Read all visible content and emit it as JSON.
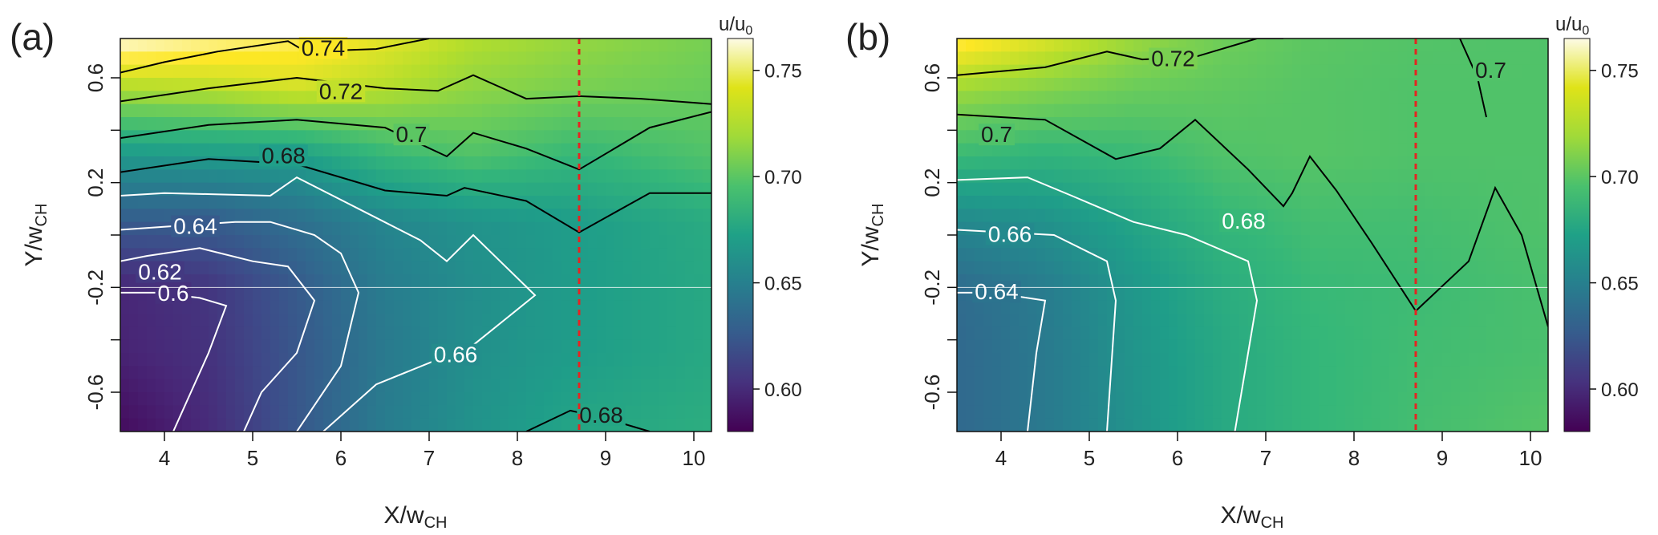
{
  "chart_data": [
    {
      "type": "heatmap",
      "panel_label": "(a)",
      "xlabel": "X/w",
      "xlabel_sub": "CH",
      "ylabel": "Y/w",
      "ylabel_sub": "CH",
      "xlim": [
        3.5,
        10.2
      ],
      "ylim": [
        -0.75,
        0.75
      ],
      "x_ticks": [
        "4",
        "5",
        "6",
        "7",
        "8",
        "9",
        "10"
      ],
      "x_tick_values": [
        4,
        5,
        6,
        7,
        8,
        9,
        10
      ],
      "y_ticks": [
        "-0.6",
        "-0.2",
        "0.2",
        "0.6"
      ],
      "y_tick_values": [
        -0.6,
        -0.2,
        0.2,
        0.6
      ],
      "y_minor_tick_values": [
        -0.4,
        0,
        0.4
      ],
      "vline_x": 8.7,
      "hline_y": -0.2,
      "colorbar": {
        "title_main": "u/u",
        "title_sub": "0",
        "range": [
          0.58,
          0.765
        ],
        "ticks": [
          "0.60",
          "0.65",
          "0.70",
          "0.75"
        ],
        "tick_values": [
          0.6,
          0.65,
          0.7,
          0.75
        ]
      },
      "field": {
        "x": [
          3.5,
          4.5,
          5.5,
          6.5,
          7.5,
          8.7,
          10.2
        ],
        "y": [
          -0.75,
          -0.45,
          -0.2,
          0.05,
          0.3,
          0.55,
          0.75
        ],
        "z": [
          [
            0.585,
            0.6,
            0.625,
            0.65,
            0.665,
            0.678,
            0.684
          ],
          [
            0.596,
            0.604,
            0.625,
            0.648,
            0.663,
            0.672,
            0.68
          ],
          [
            0.598,
            0.606,
            0.627,
            0.65,
            0.662,
            0.672,
            0.68
          ],
          [
            0.628,
            0.628,
            0.64,
            0.656,
            0.665,
            0.672,
            0.682
          ],
          [
            0.668,
            0.67,
            0.672,
            0.69,
            0.7,
            0.69,
            0.7
          ],
          [
            0.725,
            0.728,
            0.735,
            0.728,
            0.718,
            0.712,
            0.708
          ],
          [
            0.765,
            0.758,
            0.752,
            0.74,
            0.728,
            0.72,
            0.712
          ]
        ]
      },
      "contours": [
        {
          "level": "0.74",
          "color": "black",
          "x": [
            3.5,
            4.0,
            4.6,
            5.4,
            5.6,
            6.4,
            7.0
          ],
          "y": [
            0.62,
            0.66,
            0.7,
            0.74,
            0.7,
            0.71,
            0.75
          ],
          "label_x": 5.8,
          "label_y": 0.715
        },
        {
          "level": "0.72",
          "color": "black",
          "x": [
            3.5,
            4.5,
            5.5,
            6.5,
            7.1,
            7.5,
            8.1,
            8.7,
            9.4,
            10.2
          ],
          "y": [
            0.51,
            0.56,
            0.6,
            0.56,
            0.55,
            0.61,
            0.52,
            0.53,
            0.52,
            0.5
          ],
          "label_x": 6.0,
          "label_y": 0.55
        },
        {
          "level": "0.7",
          "color": "black",
          "x": [
            3.5,
            4.5,
            5.5,
            6.5,
            7.2,
            7.5,
            8.1,
            8.7,
            9.5,
            10.2
          ],
          "y": [
            0.37,
            0.42,
            0.44,
            0.41,
            0.3,
            0.39,
            0.33,
            0.25,
            0.41,
            0.47
          ],
          "label_x": 6.8,
          "label_y": 0.385
        },
        {
          "level": "0.68",
          "color": "black",
          "x": [
            3.5,
            4.5,
            5.5,
            6.5,
            7.2,
            7.4,
            8.1,
            8.7,
            9.5,
            10.2
          ],
          "y": [
            0.24,
            0.29,
            0.27,
            0.17,
            0.15,
            0.18,
            0.13,
            0.01,
            0.16,
            0.16
          ],
          "label_x": 5.35,
          "label_y": 0.305
        },
        {
          "level": "0.66",
          "color": "white",
          "x": [
            3.5,
            4.0,
            5.2,
            5.5,
            6.2,
            6.9,
            7.2,
            7.5,
            8.2,
            7.5,
            6.4,
            5.8
          ],
          "y": [
            0.15,
            0.16,
            0.15,
            0.22,
            0.1,
            -0.02,
            -0.1,
            0.0,
            -0.23,
            -0.42,
            -0.57,
            -0.75
          ],
          "label_x": 7.3,
          "label_y": -0.455
        },
        {
          "level": "0.64",
          "color": "white",
          "x": [
            3.5,
            4.8,
            5.2,
            5.7,
            6.0,
            6.2,
            6.0,
            5.5
          ],
          "y": [
            0.02,
            0.05,
            0.05,
            0.0,
            -0.07,
            -0.22,
            -0.5,
            -0.75
          ],
          "label_x": 4.35,
          "label_y": 0.035
        },
        {
          "level": "0.62",
          "color": "white",
          "x": [
            3.5,
            3.8,
            4.4,
            5.0,
            5.4,
            5.7,
            5.5,
            5.1,
            4.9
          ],
          "y": [
            -0.1,
            -0.08,
            -0.05,
            -0.1,
            -0.12,
            -0.25,
            -0.45,
            -0.6,
            -0.75
          ],
          "label_x": 3.95,
          "label_y": -0.14
        },
        {
          "level": "0.6",
          "color": "white",
          "x": [
            3.5,
            3.9,
            4.4,
            4.7,
            4.5,
            4.3,
            4.1
          ],
          "y": [
            -0.22,
            -0.22,
            -0.24,
            -0.27,
            -0.45,
            -0.6,
            -0.75
          ],
          "label_x": 4.1,
          "label_y": -0.22
        },
        {
          "level": "0.68",
          "color": "black",
          "x": [
            8.1,
            8.6,
            9.0,
            9.5
          ],
          "y": [
            -0.75,
            -0.67,
            -0.7,
            -0.75
          ],
          "label_x": 8.95,
          "label_y": -0.685
        }
      ]
    },
    {
      "type": "heatmap",
      "panel_label": "(b)",
      "xlabel": "X/w",
      "xlabel_sub": "CH",
      "ylabel": "Y/w",
      "ylabel_sub": "CH",
      "xlim": [
        3.5,
        10.2
      ],
      "ylim": [
        -0.75,
        0.75
      ],
      "x_ticks": [
        "4",
        "5",
        "6",
        "7",
        "8",
        "9",
        "10"
      ],
      "x_tick_values": [
        4,
        5,
        6,
        7,
        8,
        9,
        10
      ],
      "y_ticks": [
        "-0.6",
        "-0.2",
        "0.2",
        "0.6"
      ],
      "y_tick_values": [
        -0.6,
        -0.2,
        0.2,
        0.6
      ],
      "y_minor_tick_values": [
        -0.4,
        0,
        0.4
      ],
      "vline_x": 8.7,
      "hline_y": -0.2,
      "colorbar": {
        "title_main": "u/u",
        "title_sub": "0",
        "range": [
          0.58,
          0.765
        ],
        "ticks": [
          "0.60",
          "0.65",
          "0.70",
          "0.75"
        ],
        "tick_values": [
          0.6,
          0.65,
          0.7,
          0.75
        ]
      },
      "field": {
        "x": [
          3.5,
          4.5,
          5.5,
          6.5,
          7.5,
          8.7,
          10.2
        ],
        "y": [
          -0.75,
          -0.45,
          -0.2,
          0.05,
          0.3,
          0.55,
          0.75
        ],
        "z": [
          [
            0.636,
            0.648,
            0.665,
            0.68,
            0.69,
            0.696,
            0.702
          ],
          [
            0.636,
            0.648,
            0.666,
            0.68,
            0.69,
            0.695,
            0.698
          ],
          [
            0.638,
            0.65,
            0.668,
            0.683,
            0.692,
            0.694,
            0.698
          ],
          [
            0.658,
            0.664,
            0.677,
            0.69,
            0.696,
            0.696,
            0.7
          ],
          [
            0.692,
            0.688,
            0.692,
            0.7,
            0.702,
            0.7,
            0.7
          ],
          [
            0.722,
            0.715,
            0.708,
            0.705,
            0.702,
            0.7,
            0.7
          ],
          [
            0.752,
            0.738,
            0.722,
            0.71,
            0.704,
            0.701,
            0.7
          ]
        ]
      },
      "contours": [
        {
          "level": "0.72",
          "color": "black",
          "x": [
            3.5,
            4.5,
            5.2,
            5.6,
            6.2,
            6.9,
            7.2
          ],
          "y": [
            0.61,
            0.64,
            0.7,
            0.67,
            0.68,
            0.75,
            0.75
          ],
          "label_x": 5.95,
          "label_y": 0.675
        },
        {
          "level": "0.7",
          "color": "black",
          "x": [
            3.5,
            4.5,
            5.3,
            5.8,
            6.2,
            6.8,
            7.2,
            7.3,
            7.5,
            7.8,
            8.2,
            8.7,
            9.3,
            9.6,
            9.9,
            10.2
          ],
          "y": [
            0.46,
            0.44,
            0.29,
            0.33,
            0.44,
            0.25,
            0.11,
            0.16,
            0.3,
            0.17,
            -0.03,
            -0.29,
            -0.1,
            0.18,
            0.0,
            -0.35
          ],
          "label_x": 3.95,
          "label_y": 0.385
        },
        {
          "level": "0.7",
          "color": "black",
          "x": [
            9.2,
            9.4,
            9.5
          ],
          "y": [
            0.75,
            0.6,
            0.45
          ],
          "label_x": 9.55,
          "label_y": 0.63
        },
        {
          "level": "0.68",
          "color": "white",
          "x": [
            3.5,
            4.3,
            4.8,
            5.5,
            6.1,
            6.8,
            6.9,
            6.65
          ],
          "y": [
            0.21,
            0.22,
            0.15,
            0.05,
            0.0,
            -0.1,
            -0.25,
            -0.75
          ],
          "label_x": 6.75,
          "label_y": 0.055
        },
        {
          "level": "0.66",
          "color": "white",
          "x": [
            3.5,
            4.6,
            5.2,
            5.3,
            5.2
          ],
          "y": [
            0.02,
            0.0,
            -0.1,
            -0.25,
            -0.75
          ],
          "label_x": 4.1,
          "label_y": 0.005
        },
        {
          "level": "0.64",
          "color": "white",
          "x": [
            3.5,
            3.9,
            4.5,
            4.4,
            4.3
          ],
          "y": [
            -0.22,
            -0.22,
            -0.25,
            -0.45,
            -0.75
          ],
          "label_x": 3.95,
          "label_y": -0.215
        }
      ]
    }
  ]
}
